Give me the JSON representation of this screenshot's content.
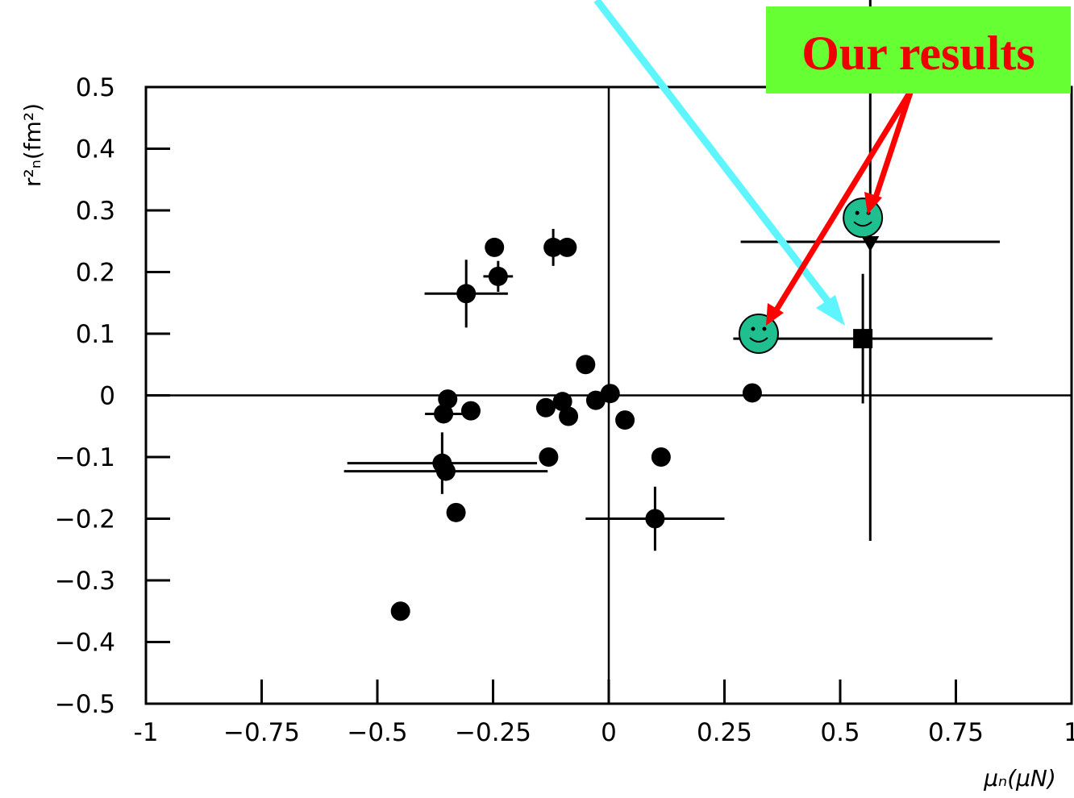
{
  "chart_data": {
    "type": "scatter",
    "x_label": "μₙ(μN)",
    "y_label": "r²ₙ(fm²)",
    "annotation": "Our results",
    "xlim": [
      -1,
      1
    ],
    "ylim": [
      -0.5,
      0.5
    ],
    "xticks": [
      -1,
      {
        "value": -0.75,
        "label": "−0.75"
      },
      {
        "value": -0.5,
        "label": "−0.5"
      },
      {
        "value": -0.25,
        "label": "−0.25"
      },
      0,
      0.25,
      0.5,
      0.75,
      1
    ],
    "yticks": [
      {
        "value": -0.5,
        "label": "−0.5"
      },
      {
        "value": -0.4,
        "label": "−0.4"
      },
      {
        "value": -0.3,
        "label": "−0.3"
      },
      {
        "value": -0.2,
        "label": "−0.2"
      },
      {
        "value": -0.1,
        "label": "−0.1"
      },
      0,
      0.1,
      0.2,
      0.3,
      0.4,
      0.5
    ],
    "color": "#000000",
    "highlight_color": "#1fbf8f",
    "points": [
      {
        "x": -0.247,
        "y": 0.24,
        "xerr": null,
        "yerr": null,
        "marker": "circle"
      },
      {
        "x": -0.239,
        "y": 0.193,
        "xerr": 0.032,
        "yerr": 0.025,
        "marker": "circle"
      },
      {
        "x": -0.308,
        "y": 0.165,
        "xerr": 0.09,
        "yerr": 0.055,
        "marker": "circle"
      },
      {
        "x": -0.12,
        "y": 0.24,
        "xerr": null,
        "yerr": 0.03,
        "marker": "circle"
      },
      {
        "x": -0.09,
        "y": 0.24,
        "xerr": null,
        "yerr": null,
        "marker": "circle"
      },
      {
        "x": -0.05,
        "y": 0.05,
        "xerr": null,
        "yerr": null,
        "marker": "circle"
      },
      {
        "x": -0.348,
        "y": -0.006,
        "xerr": null,
        "yerr": null,
        "marker": "circle"
      },
      {
        "x": -0.357,
        "y": -0.03,
        "xerr": 0.04,
        "yerr": null,
        "marker": "circle"
      },
      {
        "x": -0.298,
        "y": -0.025,
        "xerr": null,
        "yerr": null,
        "marker": "circle"
      },
      {
        "x": -0.136,
        "y": -0.02,
        "xerr": null,
        "yerr": null,
        "marker": "circle"
      },
      {
        "x": -0.1,
        "y": -0.01,
        "xerr": null,
        "yerr": null,
        "marker": "circle"
      },
      {
        "x": -0.087,
        "y": -0.034,
        "xerr": null,
        "yerr": null,
        "marker": "circle"
      },
      {
        "x": -0.028,
        "y": -0.008,
        "xerr": null,
        "yerr": null,
        "marker": "circle"
      },
      {
        "x": 0.003,
        "y": 0.003,
        "xerr": null,
        "yerr": null,
        "marker": "circle"
      },
      {
        "x": 0.035,
        "y": -0.04,
        "xerr": null,
        "yerr": null,
        "marker": "circle"
      },
      {
        "x": -0.13,
        "y": -0.1,
        "xerr": null,
        "yerr": null,
        "marker": "circle"
      },
      {
        "x": 0.113,
        "y": -0.1,
        "xerr": null,
        "yerr": null,
        "marker": "circle"
      },
      {
        "x": -0.36,
        "y": -0.11,
        "xerr": 0.205,
        "yerr": 0.05,
        "marker": "circle"
      },
      {
        "x": -0.352,
        "y": -0.123,
        "xerr": 0.22,
        "yerr": null,
        "marker": "circle"
      },
      {
        "x": -0.33,
        "y": -0.19,
        "xerr": null,
        "yerr": null,
        "marker": "circle"
      },
      {
        "x": 0.1,
        "y": -0.2,
        "xerr": 0.15,
        "yerr": 0.052,
        "marker": "circle"
      },
      {
        "x": -0.45,
        "y": -0.35,
        "xerr": null,
        "yerr": null,
        "marker": "circle"
      },
      {
        "x": 0.31,
        "y": 0.004,
        "xerr": null,
        "yerr": null,
        "marker": "circle"
      },
      {
        "x": 0.549,
        "y": 0.092,
        "xerr": 0.28,
        "yerr": 0.105,
        "marker": "square"
      },
      {
        "x": 0.565,
        "y": 0.249,
        "xerr": 0.28,
        "yerr": 0.485,
        "marker": "triangle"
      },
      {
        "x": 0.549,
        "y": 0.288,
        "xerr": null,
        "yerr": null,
        "marker": "smiley"
      },
      {
        "x": 0.324,
        "y": 0.1,
        "xerr": null,
        "yerr": null,
        "marker": "smiley"
      }
    ]
  }
}
